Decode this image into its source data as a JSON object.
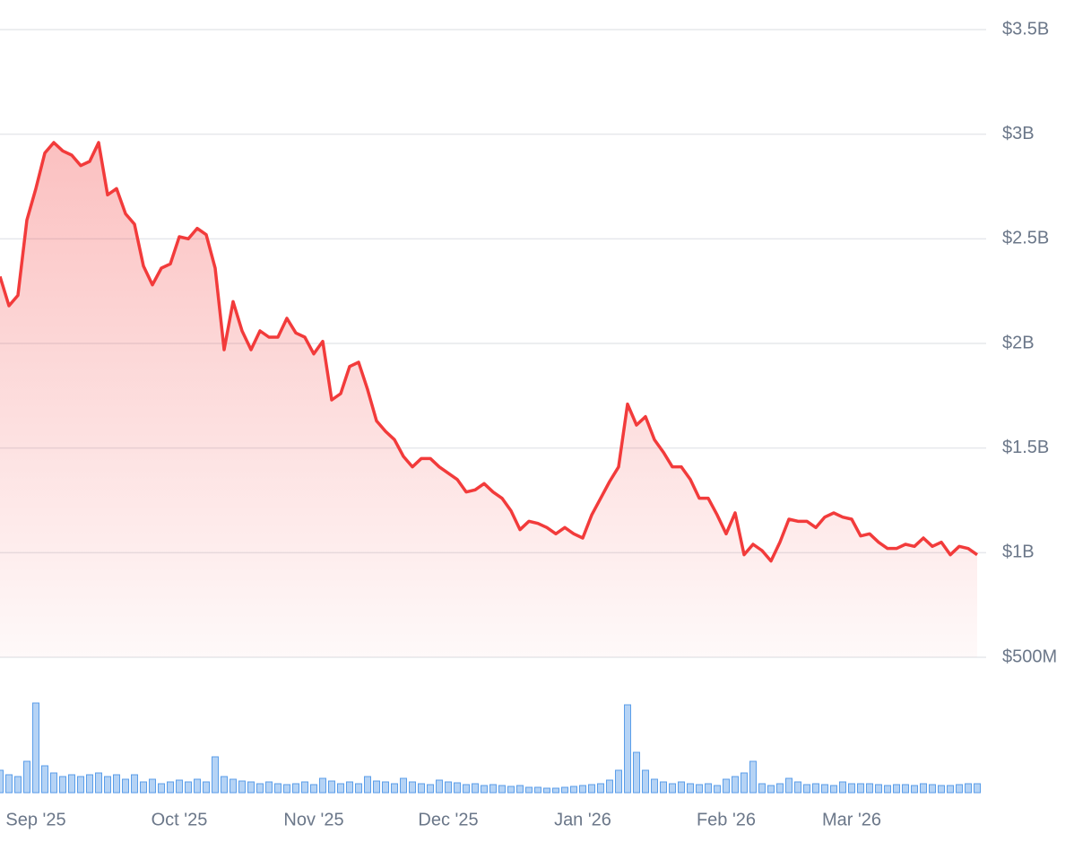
{
  "chart_data": {
    "type": "line",
    "categories": [
      null,
      null,
      null,
      null,
      "Sep '25",
      null,
      null,
      null,
      null,
      null,
      null,
      null,
      null,
      null,
      null,
      null,
      null,
      null,
      null,
      null,
      "Oct '25",
      null,
      null,
      null,
      null,
      null,
      null,
      null,
      null,
      null,
      null,
      null,
      null,
      null,
      null,
      "Nov '25",
      null,
      null,
      null,
      null,
      null,
      null,
      null,
      null,
      null,
      null,
      null,
      null,
      null,
      null,
      "Dec '25",
      null,
      null,
      null,
      null,
      null,
      null,
      null,
      null,
      null,
      null,
      null,
      null,
      null,
      null,
      "Jan '26",
      null,
      null,
      null,
      null,
      null,
      null,
      null,
      null,
      null,
      null,
      null,
      null,
      null,
      null,
      null,
      "Feb '26",
      null,
      null,
      null,
      null,
      null,
      null,
      null,
      null,
      null,
      null,
      null,
      null,
      null,
      "Mar '26",
      null,
      null,
      null,
      null,
      null,
      null,
      null,
      null,
      null,
      null,
      null,
      null,
      null,
      null
    ],
    "series": [
      {
        "color": "#f23b3b",
        "values": [
          2320000000.0,
          2180000000.0,
          2230000000.0,
          2590000000.0,
          2740000000.0,
          2910000000.0,
          2960000000.0,
          2920000000.0,
          2900000000.0,
          2850000000.0,
          2870000000.0,
          2960000000.0,
          2710000000.0,
          2740000000.0,
          2620000000.0,
          2570000000.0,
          2370000000.0,
          2280000000.0,
          2360000000.0,
          2380000000.0,
          2510000000.0,
          2500000000.0,
          2550000000.0,
          2520000000.0,
          2360000000.0,
          1970000000.0,
          2200000000.0,
          2060000000.0,
          1970000000.0,
          2060000000.0,
          2030000000.0,
          2030000000.0,
          2120000000.0,
          2050000000.0,
          2030000000.0,
          1950000000.0,
          2010000000.0,
          1730000000.0,
          1760000000.0,
          1890000000.0,
          1910000000.0,
          1780000000.0,
          1630000000.0,
          1580000000.0,
          1540000000.0,
          1460000000.0,
          1410000000.0,
          1450000000.0,
          1450000000.0,
          1410000000.0,
          1380000000.0,
          1350000000.0,
          1290000000.0,
          1300000000.0,
          1330000000.0,
          1290000000.0,
          1260000000.0,
          1200000000.0,
          1110000000.0,
          1150000000.0,
          1140000000.0,
          1120000000.0,
          1090000000.0,
          1120000000.0,
          1090000000.0,
          1070000000.0,
          1180000000.0,
          1260000000.0,
          1340000000.0,
          1410000000.0,
          1710000000.0,
          1610000000.0,
          1650000000.0,
          1540000000.0,
          1480000000.0,
          1410000000.0,
          1410000000.0,
          1350000000.0,
          1260000000.0,
          1260000000.0,
          1180000000.0,
          1090000000.0,
          1190000000.0,
          990000000.0,
          1040000000.0,
          1010000000.0,
          960000000.0,
          1050000000.0,
          1160000000.0,
          1150000000.0,
          1150000000.0,
          1120000000.0,
          1170000000.0,
          1190000000.0,
          1170000000.0,
          1160000000.0,
          1080000000.0,
          1090000000.0,
          1050000000.0,
          1020000000.0,
          1020000000.0,
          1040000000.0,
          1030000000.0,
          1070000000.0,
          1030000000.0,
          1050000000.0,
          990000000.0,
          1030000000.0,
          1020000000.0,
          990000000.0
        ]
      },
      {
        "color": "#5b9ee9",
        "axis": "y2",
        "type": "bar",
        "values": [
          250000000.0,
          200000000.0,
          180000000.0,
          350000000.0,
          1000000000.0,
          300000000.0,
          220000000.0,
          180000000.0,
          200000000.0,
          180000000.0,
          200000000.0,
          220000000.0,
          180000000.0,
          200000000.0,
          150000000.0,
          200000000.0,
          120000000.0,
          150000000.0,
          100000000.0,
          120000000.0,
          140000000.0,
          120000000.0,
          150000000.0,
          120000000.0,
          400000000.0,
          180000000.0,
          150000000.0,
          130000000.0,
          120000000.0,
          100000000.0,
          120000000.0,
          100000000.0,
          90000000.0,
          100000000.0,
          120000000.0,
          90000000.0,
          160000000.0,
          130000000.0,
          100000000.0,
          120000000.0,
          100000000.0,
          180000000.0,
          130000000.0,
          120000000.0,
          100000000.0,
          160000000.0,
          120000000.0,
          100000000.0,
          90000000.0,
          140000000.0,
          120000000.0,
          110000000.0,
          90000000.0,
          100000000.0,
          80000000.0,
          90000000.0,
          80000000.0,
          70000000.0,
          80000000.0,
          60000000.0,
          60000000.0,
          50000000.0,
          50000000.0,
          60000000.0,
          70000000.0,
          80000000.0,
          90000000.0,
          100000000.0,
          140000000.0,
          250000000.0,
          980000000.0,
          450000000.0,
          250000000.0,
          150000000.0,
          120000000.0,
          100000000.0,
          120000000.0,
          100000000.0,
          90000000.0,
          100000000.0,
          80000000.0,
          150000000.0,
          180000000.0,
          220000000.0,
          350000000.0,
          100000000.0,
          80000000.0,
          100000000.0,
          160000000.0,
          120000000.0,
          90000000.0,
          100000000.0,
          90000000.0,
          80000000.0,
          120000000.0,
          100000000.0,
          100000000.0,
          100000000.0,
          90000000.0,
          80000000.0,
          90000000.0,
          90000000.0,
          80000000.0,
          100000000.0,
          90000000.0,
          80000000.0,
          80000000.0,
          90000000.0,
          100000000.0,
          100000000.0
        ]
      }
    ],
    "ylim": [
      500000000.0,
      3500000000.0
    ],
    "yticks": [
      {
        "value": 500000000.0,
        "label": "$500M"
      },
      {
        "value": 1000000000.0,
        "label": "$1B"
      },
      {
        "value": 1500000000.0,
        "label": "$1.5B"
      },
      {
        "value": 2000000000.0,
        "label": "$2B"
      },
      {
        "value": 2500000000.0,
        "label": "$2.5B"
      },
      {
        "value": 3000000000.0,
        "label": "$3B"
      },
      {
        "value": 3500000000.0,
        "label": "$3.5B"
      }
    ],
    "y2lim": [
      0,
      1200000000.0
    ],
    "grid": true
  }
}
